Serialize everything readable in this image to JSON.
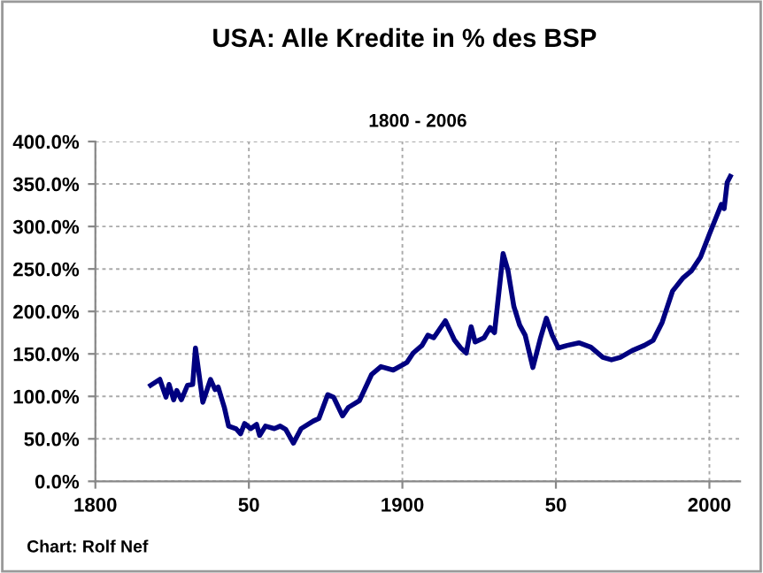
{
  "chart_data": {
    "type": "line",
    "title": "USA: Alle Kredite in % des BSP",
    "subtitle": "1800 - 2006",
    "annotations": [
      "Chart: Rolf Nef"
    ],
    "x": [
      1818,
      1821,
      1823,
      1824,
      1825.5,
      1826.5,
      1828,
      1830,
      1831.7,
      1832.6,
      1835,
      1837.5,
      1839,
      1840,
      1842,
      1843.4,
      1845.8,
      1847.3,
      1848.6,
      1850.6,
      1852.5,
      1853.5,
      1855.4,
      1858.3,
      1860.2,
      1862,
      1864.5,
      1867,
      1871,
      1872.8,
      1875.7,
      1877.6,
      1880.5,
      1882.4,
      1886,
      1890,
      1893,
      1897,
      1901.5,
      1903.5,
      1906.4,
      1908.3,
      1910.2,
      1914,
      1917,
      1919,
      1920.8,
      1922.4,
      1923.7,
      1926.6,
      1928.6,
      1930,
      1932.8,
      1934.4,
      1936.3,
      1938.2,
      1940,
      1942.5,
      1945,
      1946.9,
      1948.8,
      1950.8,
      1953.7,
      1957.5,
      1961.4,
      1965.3,
      1968.1,
      1971,
      1974.9,
      1978.8,
      1981.7,
      1984.6,
      1988,
      1991.3,
      1994.2,
      1997.1,
      2000,
      2002,
      2003.9,
      2004.8,
      2005.8,
      2006.8
    ],
    "series": [
      {
        "color": "#000080",
        "values": [
          113,
          120,
          99,
          114,
          96,
          107,
          96,
          113,
          114,
          157,
          93,
          120,
          108,
          111,
          87,
          65,
          62,
          56,
          68,
          62,
          67,
          54,
          65,
          62,
          65,
          61,
          45,
          62,
          71,
          74,
          102,
          99,
          77,
          87,
          95,
          126,
          135,
          131,
          140,
          151,
          160,
          172,
          169,
          189,
          166,
          157,
          151,
          182,
          164,
          169,
          181,
          175,
          268,
          248,
          206,
          184,
          172,
          134,
          169,
          192,
          172,
          157,
          160,
          163,
          158,
          146,
          143,
          146,
          154,
          160,
          166,
          187,
          224,
          239,
          248,
          264,
          291,
          309,
          326,
          321,
          352,
          359
        ]
      }
    ],
    "xlim": [
      1800,
      2010
    ],
    "xticks": [
      1800,
      {
        "value": 1850,
        "label": "50"
      },
      1900,
      {
        "value": 1950,
        "label": "50"
      },
      2000
    ],
    "ylim": [
      0,
      400
    ],
    "yticks": [
      {
        "value": 0,
        "label": "0.0%"
      },
      {
        "value": 50,
        "label": "50.0%"
      },
      {
        "value": 100,
        "label": "100.0%"
      },
      {
        "value": 150,
        "label": "150.0%"
      },
      {
        "value": 200,
        "label": "200.0%"
      },
      {
        "value": 250,
        "label": "250.0%"
      },
      {
        "value": 300,
        "label": "300.0%"
      },
      {
        "value": 350,
        "label": "350.0%"
      },
      {
        "value": 400,
        "label": "400.0%"
      }
    ],
    "grid": true,
    "marker": "none",
    "line_style": "solid"
  }
}
